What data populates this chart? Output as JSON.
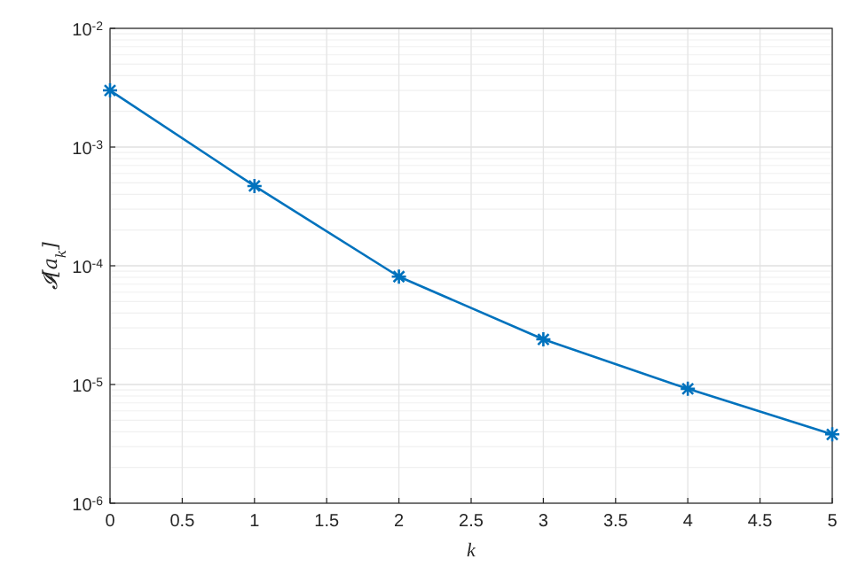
{
  "chart_data": {
    "type": "line",
    "xlabel": "k",
    "ylabel": "𝓘[a$_{k}$]",
    "x": [
      0,
      1,
      2,
      3,
      4,
      5
    ],
    "series": [
      {
        "color": "#0072bd",
        "values": [
          0.003,
          0.00047,
          8.1e-05,
          2.4e-05,
          9.2e-06,
          3.8e-06
        ]
      }
    ],
    "xlim": [
      0,
      5
    ],
    "xticks": [
      0,
      0.5,
      1,
      1.5,
      2,
      2.5,
      3,
      3.5,
      4,
      4.5,
      5
    ],
    "ylim": [
      1e-06,
      0.01
    ],
    "yticks": [
      {
        "value": 1e-06,
        "label": "10$^{-6}$"
      },
      {
        "value": 1e-05,
        "label": "10$^{-5}$"
      },
      {
        "value": 0.0001,
        "label": "10$^{-4}$"
      },
      {
        "value": 0.001,
        "label": "10$^{-3}$"
      },
      {
        "value": 0.01,
        "label": "10$^{-2}$"
      }
    ],
    "log": "y",
    "grid": true,
    "marker": "cross",
    "line_style": "solid"
  }
}
